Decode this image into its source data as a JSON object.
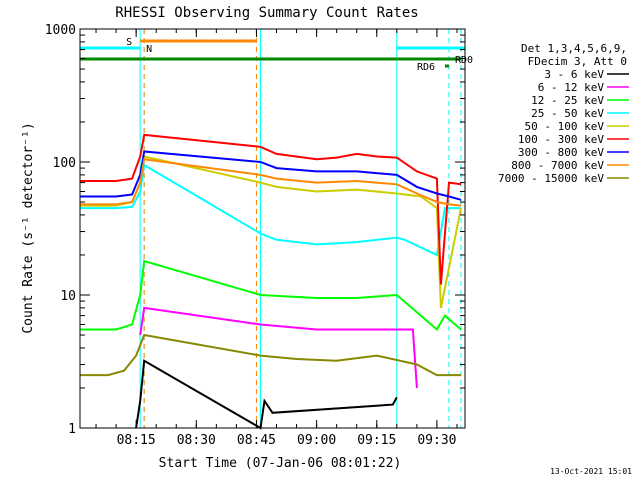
{
  "chart_data": {
    "type": "line",
    "title": "RHESSI Observing Summary Count Rates",
    "xlabel": "Start Time (07-Jan-06 08:01:22)",
    "ylabel": "Count Rate (s⁻¹ detector⁻¹)",
    "y_scale": "log",
    "ylim": [
      1,
      1000
    ],
    "xlim": [
      "08:01",
      "09:37"
    ],
    "x_ticks": [
      "08:15",
      "08:30",
      "08:45",
      "09:00",
      "09:15",
      "09:30"
    ],
    "y_ticks": [
      "1",
      "10",
      "100",
      "1000"
    ],
    "grid": false,
    "legend_header": [
      "Det 1,3,4,5,6,9,",
      "FDecim 3, Att 0"
    ],
    "legend_position": "right",
    "series": [
      {
        "name": "3 - 6 keV",
        "color": "#000000",
        "x": [
          "08:15",
          "08:16",
          "08:17",
          "08:46",
          "08:47",
          "08:49",
          "09:19",
          "09:20"
        ],
        "y": [
          1,
          1.6,
          3.2,
          1,
          1.6,
          1.3,
          1.5,
          1.7
        ]
      },
      {
        "name": "6 - 12 keV",
        "color": "#ff00ff",
        "x": [
          "08:16",
          "08:17",
          "08:46",
          "09:00",
          "09:10",
          "09:20",
          "09:24",
          "09:25"
        ],
        "y": [
          5,
          8,
          6,
          5.5,
          5.5,
          5.5,
          5.5,
          2
        ]
      },
      {
        "name": "12 - 25 keV",
        "color": "#00ff00",
        "x": [
          "08:01",
          "08:10",
          "08:14",
          "08:16",
          "08:17",
          "08:46",
          "09:00",
          "09:10",
          "09:20",
          "09:30",
          "09:32",
          "09:36"
        ],
        "y": [
          5.5,
          5.5,
          6,
          10,
          18,
          10,
          9.5,
          9.5,
          10,
          5.5,
          7,
          5.5
        ]
      },
      {
        "name": "25 - 50 keV",
        "color": "#00ffff",
        "x": [
          "08:01",
          "08:10",
          "08:14",
          "08:16",
          "08:17",
          "08:46",
          "08:50",
          "09:00",
          "09:10",
          "09:20",
          "09:22",
          "09:30",
          "09:32",
          "09:36"
        ],
        "y": [
          45,
          45,
          46,
          60,
          95,
          29,
          26,
          24,
          25,
          27,
          26,
          20,
          45,
          45
        ]
      },
      {
        "name": "50 - 100 keV",
        "color": "#cccc00",
        "x": [
          "08:01",
          "08:10",
          "08:14",
          "08:16",
          "08:17",
          "08:46",
          "08:50",
          "09:00",
          "09:10",
          "09:20",
          "09:26",
          "09:30",
          "09:31",
          "09:36"
        ],
        "y": [
          47,
          47,
          50,
          70,
          110,
          70,
          65,
          60,
          62,
          58,
          55,
          45,
          8,
          45
        ]
      },
      {
        "name": "100 - 300 keV",
        "color": "#ff0000",
        "x": [
          "08:01",
          "08:10",
          "08:14",
          "08:16",
          "08:17",
          "08:46",
          "08:50",
          "09:00",
          "09:05",
          "09:10",
          "09:15",
          "09:20",
          "09:25",
          "09:30",
          "09:31",
          "09:33",
          "09:36"
        ],
        "y": [
          72,
          72,
          75,
          110,
          160,
          130,
          115,
          105,
          108,
          115,
          110,
          108,
          85,
          75,
          12,
          70,
          68
        ]
      },
      {
        "name": "300 - 800 keV",
        "color": "#0000ff",
        "x": [
          "08:01",
          "08:10",
          "08:14",
          "08:16",
          "08:17",
          "08:46",
          "08:50",
          "09:00",
          "09:10",
          "09:20",
          "09:25",
          "09:30",
          "09:33",
          "09:36"
        ],
        "y": [
          55,
          55,
          57,
          80,
          120,
          100,
          90,
          85,
          85,
          80,
          65,
          58,
          55,
          52
        ]
      },
      {
        "name": "800 - 7000 keV",
        "color": "#ff8800",
        "x": [
          "08:01",
          "08:10",
          "08:14",
          "08:16",
          "08:17",
          "08:46",
          "08:50",
          "09:00",
          "09:10",
          "09:20",
          "09:25",
          "09:30",
          "09:33",
          "09:36"
        ],
        "y": [
          48,
          48,
          50,
          70,
          105,
          80,
          75,
          70,
          72,
          68,
          58,
          50,
          48,
          47
        ]
      },
      {
        "name": "7000 - 15000 keV",
        "color": "#888800",
        "x": [
          "08:01",
          "08:08",
          "08:12",
          "08:15",
          "08:17",
          "08:46",
          "08:55",
          "09:05",
          "09:15",
          "09:25",
          "09:30",
          "09:36"
        ],
        "y": [
          2.5,
          2.5,
          2.7,
          3.5,
          5,
          3.5,
          3.3,
          3.2,
          3.5,
          3,
          2.5,
          2.5
        ]
      }
    ],
    "flag_bars": [
      {
        "label": "S",
        "color": "#ff8800",
        "x_start": "08:16",
        "x_end": "08:45",
        "y_rank": 1
      },
      {
        "label": "N",
        "color": "#00ffff",
        "x_start": "08:01",
        "x_end": "08:16",
        "y_rank": 2
      },
      {
        "label": "",
        "color": "#00ffff",
        "x_start": "09:20",
        "x_end": "09:37",
        "y_rank": 2
      },
      {
        "label": "",
        "color": "#008800",
        "x_start": "08:01",
        "x_end": "09:34",
        "y_rank": 3
      },
      {
        "label": "RD0",
        "color": "#008800",
        "x_start": "09:34",
        "x_end": "09:36",
        "y_rank": 3
      },
      {
        "label": "RD6",
        "color": "#008800",
        "x_start": "09:32",
        "x_end": "09:33",
        "y_rank": 4
      }
    ],
    "vertical_markers": [
      {
        "x": "08:01",
        "color": "#00ffff",
        "style": "solid"
      },
      {
        "x": "08:16",
        "color": "#00ffff",
        "style": "solid"
      },
      {
        "x": "08:17",
        "color": "#00ffff",
        "style": "dashed"
      },
      {
        "x": "08:17",
        "color": "#ff8800",
        "style": "dashed"
      },
      {
        "x": "08:45",
        "color": "#ff8800",
        "style": "dashed"
      },
      {
        "x": "08:46",
        "color": "#00ffff",
        "style": "solid"
      },
      {
        "x": "09:20",
        "color": "#00ffff",
        "style": "solid"
      },
      {
        "x": "09:33",
        "color": "#00ffff",
        "style": "dashed"
      },
      {
        "x": "09:36",
        "color": "#00ffff",
        "style": "dashed"
      }
    ],
    "footer_timestamp": "13-Oct-2021 15:01"
  }
}
